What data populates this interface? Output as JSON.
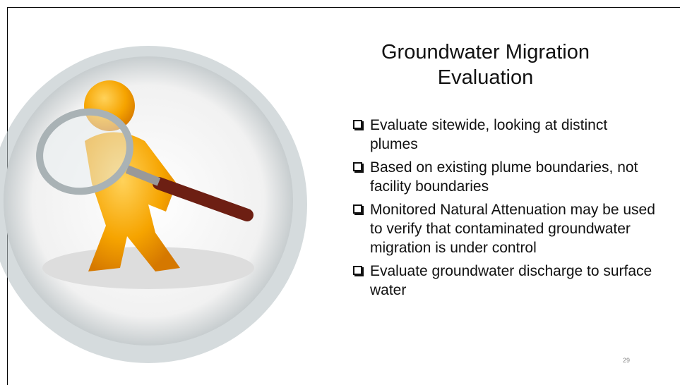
{
  "title": "Groundwater Migration Evaluation",
  "bullets": [
    "Evaluate sitewide, looking at distinct plumes",
    "Based on existing plume boundaries, not facility boundaries",
    "Monitored Natural Attenuation may be used to verify that contaminated groundwater migration is under control",
    "Evaluate groundwater discharge to surface water"
  ],
  "page_number": "29"
}
